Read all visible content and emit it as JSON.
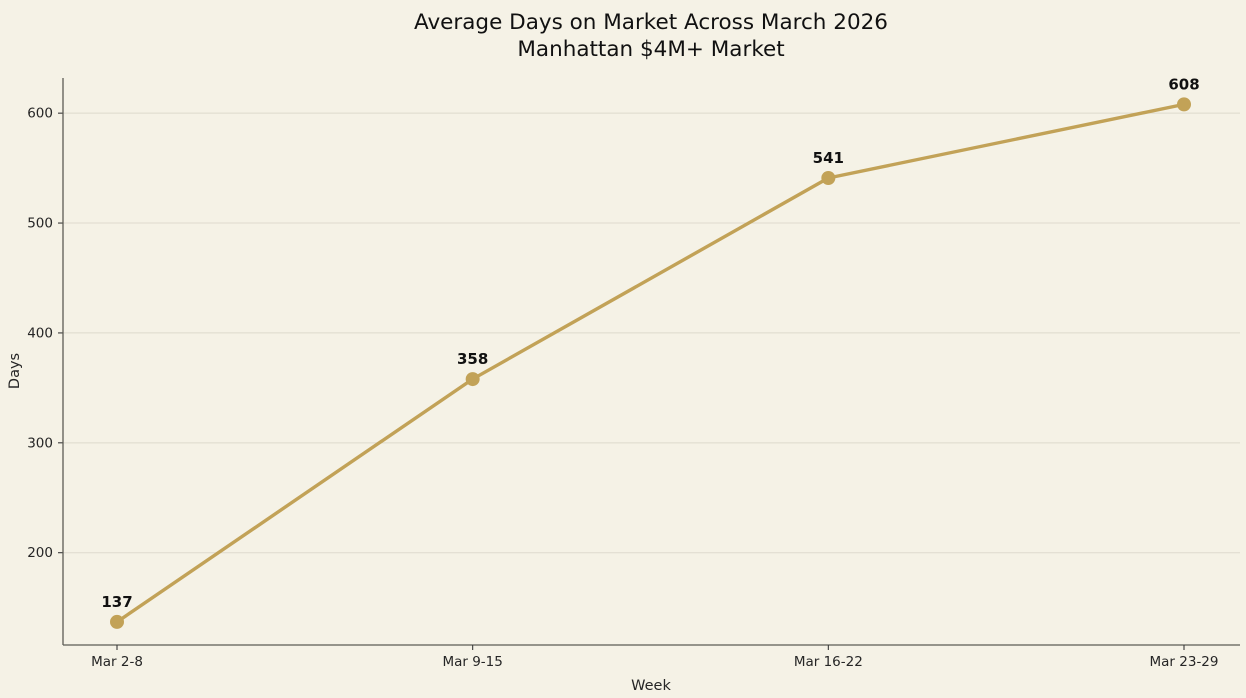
{
  "chart_data": {
    "type": "line",
    "title": [
      "Average Days on Market Across March 2026",
      "Manhattan $4M+ Market"
    ],
    "categories": [
      "Mar 2-8",
      "Mar 9-15",
      "Mar 16-22",
      "Mar 23-29"
    ],
    "values": [
      137,
      358,
      541,
      608
    ],
    "point_labels": [
      "137",
      "358",
      "541",
      "608"
    ],
    "xlabel": "Week",
    "ylabel": "Days",
    "yticks": [
      200,
      300,
      400,
      500,
      600
    ],
    "ylim": [
      116,
      632
    ],
    "grid": "horizontal-only",
    "legend": "none",
    "marker": "circle",
    "colors": {
      "line": "#c2a257",
      "marker": "#c2a257",
      "background": "#f5f2e6",
      "gridline": "#dedacd",
      "spine": "#5c5c55",
      "tick_mark": "#3a3a3a",
      "tick_label": "#262626",
      "title_text": "#111111",
      "point_label_text": "#111111"
    }
  }
}
